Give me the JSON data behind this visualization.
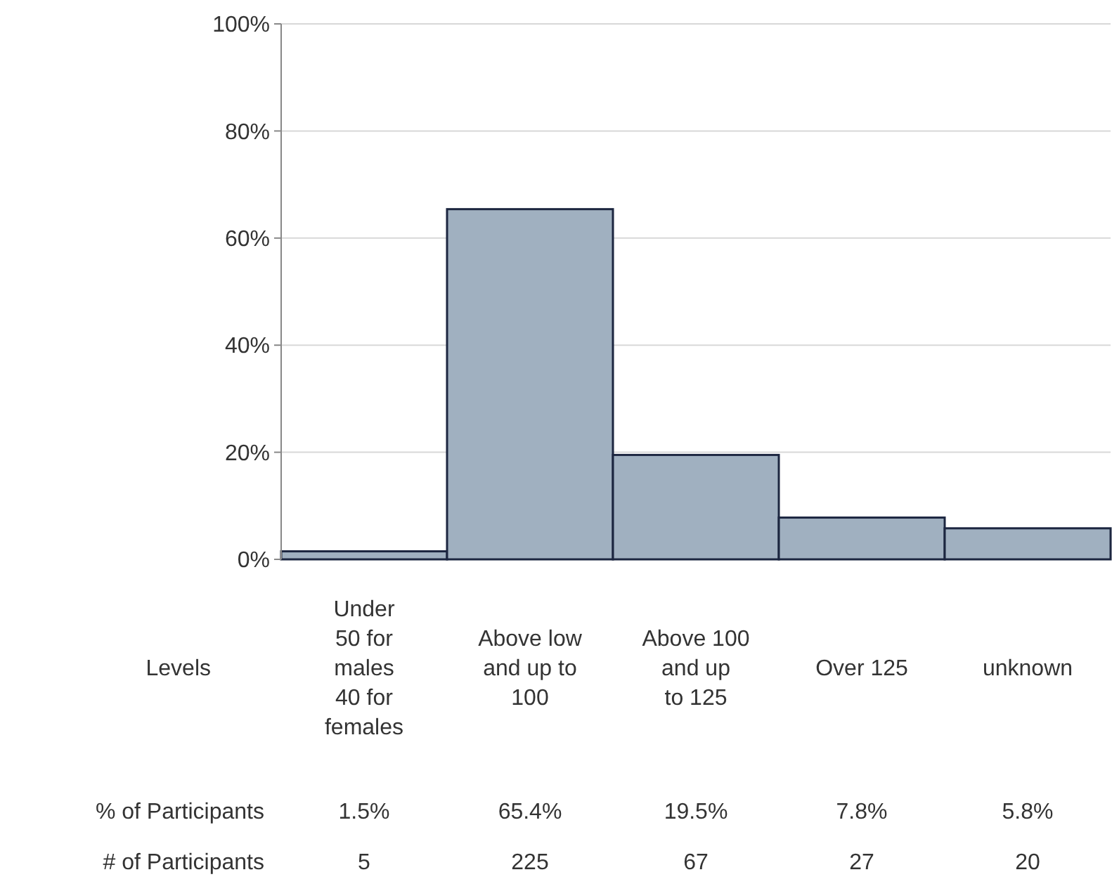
{
  "chart_data": {
    "type": "bar",
    "xlabel": "Levels",
    "categories": [
      "Under\n50 for\nmales\n40 for\nfemales",
      "Above low\nand up to\n100",
      "Above 100\nand up\nto 125",
      "Over 125",
      "unknown"
    ],
    "values": [
      1.5,
      65.4,
      19.5,
      7.8,
      5.8
    ],
    "value_labels": [
      "1.5%",
      "65.4%",
      "19.5%",
      "7.8%",
      "5.8%"
    ],
    "color": "#a0b0c0",
    "ylim": [
      0,
      100
    ],
    "yticks": [
      {
        "value": 0,
        "label": "0%"
      },
      {
        "value": 20,
        "label": "20%"
      },
      {
        "value": 40,
        "label": "40%"
      },
      {
        "value": 60,
        "label": "60%"
      },
      {
        "value": 80,
        "label": "80%"
      },
      {
        "value": 100,
        "label": "100%"
      }
    ],
    "grid": "y",
    "annotations": [
      "% of Participants",
      "# of Participants",
      "5",
      "225",
      "67",
      "27",
      "20"
    ]
  }
}
